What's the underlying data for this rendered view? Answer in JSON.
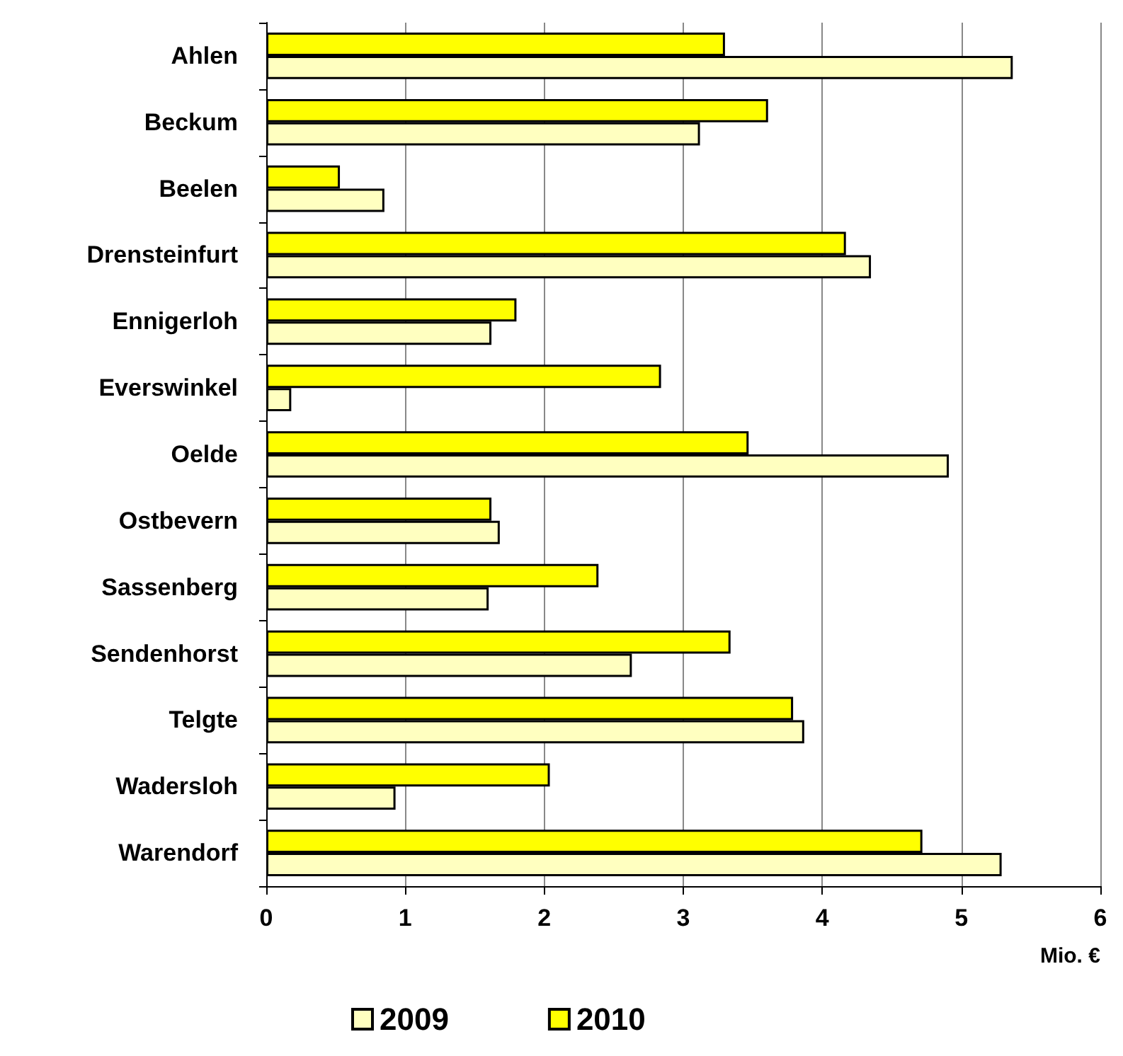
{
  "chart_data": {
    "type": "bar",
    "orientation": "horizontal",
    "xlabel": "Mio. €",
    "categories": [
      "Ahlen",
      "Beckum",
      "Beelen",
      "Drensteinfurt",
      "Ennigerloh",
      "Everswinkel",
      "Oelde",
      "Ostbevern",
      "Sassenberg",
      "Sendenhorst",
      "Telgte",
      "Wadersloh",
      "Warendorf"
    ],
    "series": [
      {
        "name": "2009",
        "color": "#ffffc0",
        "values": [
          5.37,
          3.12,
          0.85,
          4.35,
          1.62,
          0.18,
          4.91,
          1.68,
          1.6,
          2.63,
          3.87,
          0.93,
          5.29
        ]
      },
      {
        "name": "2010",
        "color": "#ffff00",
        "values": [
          3.3,
          3.61,
          0.53,
          4.17,
          1.8,
          2.84,
          3.47,
          1.62,
          2.39,
          3.34,
          3.79,
          2.04,
          4.72
        ]
      }
    ],
    "xlim": [
      0,
      6
    ],
    "xticks": [
      0,
      1,
      2,
      3,
      4,
      5,
      6
    ],
    "grid": "x",
    "legend": "bottom"
  }
}
